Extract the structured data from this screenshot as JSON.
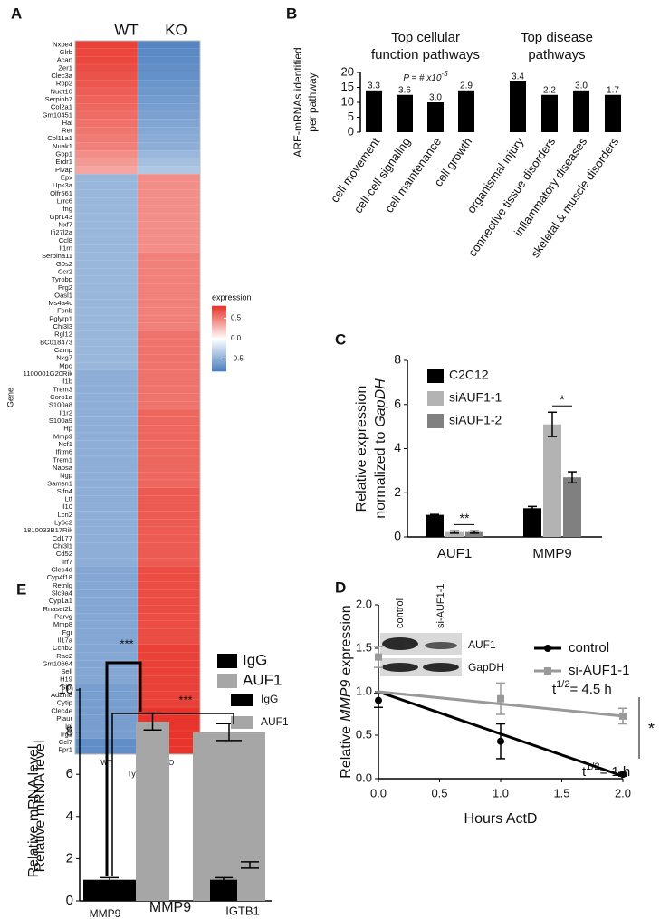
{
  "chart_data": [
    {
      "type": "heatmap",
      "panel_label": "A",
      "rows": [
        "Nxpe4",
        "Glrb",
        "Acan",
        "Zer1",
        "Clec3a",
        "Rbp2",
        "Nudt10",
        "Serpinb7",
        "Col2a1",
        "Gm10451",
        "Hal",
        "Ret",
        "Col11a1",
        "Nuak1",
        "Gbp1",
        "Erdr1",
        "Plvap",
        "Epx",
        "Upk3a",
        "Olfr561",
        "Lrrc6",
        "Ifng",
        "Gpr143",
        "Nxf7",
        "Ifi27l2a",
        "Ccl8",
        "Il1rn",
        "Serpina11",
        "G0s2",
        "Ccr2",
        "Tyrobp",
        "Prg2",
        "Oasl1",
        "Ms4a4c",
        "Fcnb",
        "Pglyrp1",
        "Chi3l3",
        "Rgl12",
        "BC018473",
        "Camp",
        "Nkg7",
        "Mpo",
        "1100001G20Rik",
        "Il1b",
        "Trem3",
        "Coro1a",
        "S100a8",
        "Il1r2",
        "S100a9",
        "Hp",
        "Mmp9",
        "Ncf1",
        "Ifitm6",
        "Trem1",
        "Napsa",
        "Ngp",
        "Samsn1",
        "Slfn4",
        "Ltf",
        "Il10",
        "Lcn2",
        "Ly6c2",
        "1810033B17Rik",
        "Cd177",
        "Chi3l1",
        "Cd52",
        "Irf7",
        "Clec4d",
        "Cyp4f18",
        "Retnlg",
        "Slc9a4",
        "Cyp1a1",
        "Rnaset2b",
        "Parvg",
        "Mmp8",
        "Fgr",
        "Il17a",
        "Ccnb2",
        "Rac2",
        "Gm10664",
        "Sell",
        "H19",
        "Slpi",
        "Adam8",
        "Cytip",
        "Clec4e",
        "Plaur",
        "Igj",
        "Irg1",
        "Ccl7",
        "Fpr1"
      ],
      "series": [
        {
          "name": "WT",
          "values": [
            0.75,
            0.73,
            0.72,
            0.7,
            0.68,
            0.66,
            0.64,
            0.62,
            0.6,
            0.58,
            0.56,
            0.54,
            0.52,
            0.5,
            0.45,
            0.4,
            0.35,
            -0.45,
            -0.45,
            -0.45,
            -0.45,
            -0.45,
            -0.45,
            -0.45,
            -0.45,
            -0.45,
            -0.45,
            -0.45,
            -0.45,
            -0.45,
            -0.45,
            -0.45,
            -0.45,
            -0.45,
            -0.45,
            -0.45,
            -0.45,
            -0.45,
            -0.45,
            -0.45,
            -0.45,
            -0.45,
            -0.5,
            -0.5,
            -0.5,
            -0.5,
            -0.5,
            -0.5,
            -0.5,
            -0.5,
            -0.5,
            -0.5,
            -0.5,
            -0.5,
            -0.5,
            -0.5,
            -0.5,
            -0.5,
            -0.5,
            -0.5,
            -0.5,
            -0.5,
            -0.5,
            -0.5,
            -0.5,
            -0.5,
            -0.5,
            -0.55,
            -0.55,
            -0.55,
            -0.55,
            -0.55,
            -0.55,
            -0.55,
            -0.55,
            -0.55,
            -0.55,
            -0.55,
            -0.55,
            -0.55,
            -0.55,
            -0.55,
            -0.6,
            -0.6,
            -0.6,
            -0.6,
            -0.6,
            -0.6,
            -0.6,
            -0.7,
            -0.7
          ]
        },
        {
          "name": "KO",
          "values": [
            -0.75,
            -0.73,
            -0.72,
            -0.7,
            -0.68,
            -0.66,
            -0.64,
            -0.62,
            -0.6,
            -0.58,
            -0.56,
            -0.54,
            -0.52,
            -0.5,
            -0.45,
            -0.4,
            -0.35,
            0.45,
            0.45,
            0.45,
            0.45,
            0.45,
            0.45,
            0.45,
            0.45,
            0.45,
            0.45,
            0.5,
            0.5,
            0.5,
            0.5,
            0.5,
            0.5,
            0.5,
            0.5,
            0.5,
            0.5,
            0.55,
            0.55,
            0.55,
            0.55,
            0.55,
            0.55,
            0.55,
            0.55,
            0.55,
            0.55,
            0.6,
            0.6,
            0.6,
            0.6,
            0.6,
            0.6,
            0.6,
            0.6,
            0.6,
            0.6,
            0.65,
            0.65,
            0.65,
            0.65,
            0.65,
            0.65,
            0.65,
            0.65,
            0.65,
            0.65,
            0.7,
            0.7,
            0.7,
            0.7,
            0.7,
            0.7,
            0.7,
            0.7,
            0.7,
            0.7,
            0.75,
            0.75,
            0.75,
            0.75,
            0.75,
            0.75,
            0.75,
            0.75,
            0.8,
            0.8,
            0.8,
            0.8,
            0.9,
            0.9
          ]
        }
      ],
      "xlabel": "Type",
      "ylabel": "Gene",
      "legend_title": "expression",
      "low_color": "#4a7ebf",
      "high_color": "#e8342a",
      "clim": [
        -0.8,
        0.8
      ],
      "cticks": [
        0.5,
        {
          "value": 0,
          "label": "0.0"
        },
        -0.5
      ]
    },
    {
      "type": "bar",
      "panel_label": "B",
      "group_titles": [
        [
          "Top cellular",
          "function pathways"
        ],
        [
          "Top disease",
          "pathways"
        ]
      ],
      "annotation": "P = # x10",
      "annotation_exponent": "-5",
      "categories": [
        "cell movement",
        "cell-cell signaling",
        "cell maintenance",
        "cell growth",
        "organismal injury",
        "connective tissue disorders",
        "inflammatory diseases",
        "skeletal & muscle disorders"
      ],
      "values": [
        14,
        12.5,
        10,
        14,
        17,
        12.5,
        14,
        12.5
      ],
      "bar_annotations": [
        "3.3",
        "3.6",
        "3.0",
        "2.9",
        "3.4",
        "2.2",
        "3.0",
        "1.7"
      ],
      "color": "#000000",
      "ylim": [
        0,
        20
      ],
      "yticks": [
        0,
        5,
        10,
        15,
        20
      ],
      "ylabel": [
        "ARE-mRNAs identified",
        "per pathway"
      ]
    },
    {
      "type": "grouped_bar",
      "panel_label": "C",
      "categories": [
        "AUF1",
        "MMP9"
      ],
      "series": [
        {
          "name": "C2C12",
          "color": "#000000",
          "values": [
            1.0,
            1.3
          ],
          "errors": [
            0.02,
            0.08
          ]
        },
        {
          "name": "siAUF1-1",
          "color": "#b3b3b3",
          "values": [
            0.22,
            5.1
          ],
          "errors": [
            0.05,
            0.55
          ]
        },
        {
          "name": "siAUF1-2",
          "color": "#808080",
          "values": [
            0.22,
            2.7
          ],
          "errors": [
            0.05,
            0.25
          ]
        }
      ],
      "significance": [
        "**",
        "*"
      ],
      "ylim": [
        0,
        8
      ],
      "yticks": [
        0,
        2,
        4,
        6,
        8
      ],
      "ylabel": [
        "Relative expression",
        "normalized to",
        "GapDH"
      ]
    },
    {
      "type": "line",
      "panel_label": "D",
      "x": [
        0,
        1,
        2
      ],
      "fit_x": [
        0,
        2
      ],
      "series": [
        {
          "name": "control",
          "color": "#000000",
          "marker": "circle",
          "values": [
            0.9,
            0.43,
            0.05
          ],
          "errors": [
            0.08,
            0.2,
            0.02
          ],
          "fit": [
            1.0,
            0.03
          ]
        },
        {
          "name": "si-AUF1-1",
          "color": "#999999",
          "marker": "square",
          "values": [
            1.4,
            0.92,
            0.72
          ],
          "errors": [
            0.12,
            0.18,
            0.09
          ],
          "fit": [
            1.0,
            0.72
          ]
        }
      ],
      "xlim": [
        0,
        2
      ],
      "xticks": [
        {
          "value": 0,
          "label": "0.0"
        },
        0.5,
        {
          "value": 1,
          "label": "1.0"
        },
        1.5,
        {
          "value": 2,
          "label": "2.0"
        }
      ],
      "ylim": [
        0,
        2
      ],
      "yticks": [
        {
          "value": 0,
          "label": "0.0"
        },
        0.5,
        {
          "value": 1,
          "label": "1.0"
        },
        1.5,
        {
          "value": 2,
          "label": "2.0"
        }
      ],
      "xlabel": "Hours ActD",
      "ylabel": [
        "Relative",
        "MMP9",
        "expression"
      ],
      "half_lives": [
        [
          "t",
          "1/2",
          "= 4.5 h"
        ],
        [
          "t",
          "1/2",
          "= 1 h"
        ]
      ],
      "significance": "*",
      "blot_lanes": [
        "control",
        "si-AUF1-1"
      ],
      "blot_bands": [
        "AUF1",
        "GapDH"
      ]
    },
    {
      "type": "overlay_bar",
      "panel_label": "E",
      "categories": [
        "MMP9",
        "IGTB1"
      ],
      "series": [
        {
          "name": "IgG",
          "color": "#000000",
          "values": [
            1.0,
            1.0
          ],
          "errors": [
            0.1,
            0.1
          ]
        },
        {
          "name": "AUF1",
          "color": "#a6a6a6",
          "values": [
            8.5,
            1.7
          ],
          "errors": [
            0.4,
            0.15
          ]
        }
      ],
      "overlay_values": [
        null,
        8.0
      ],
      "overlay_errors": [
        null,
        0.4
      ],
      "overlay_color": "#a6a6a6",
      "significance": [
        "***",
        "***"
      ],
      "ylim": [
        0,
        10
      ],
      "yticks": [
        0,
        2,
        4,
        6,
        8,
        10
      ],
      "ylabel": "Relative mRNA level"
    }
  ]
}
